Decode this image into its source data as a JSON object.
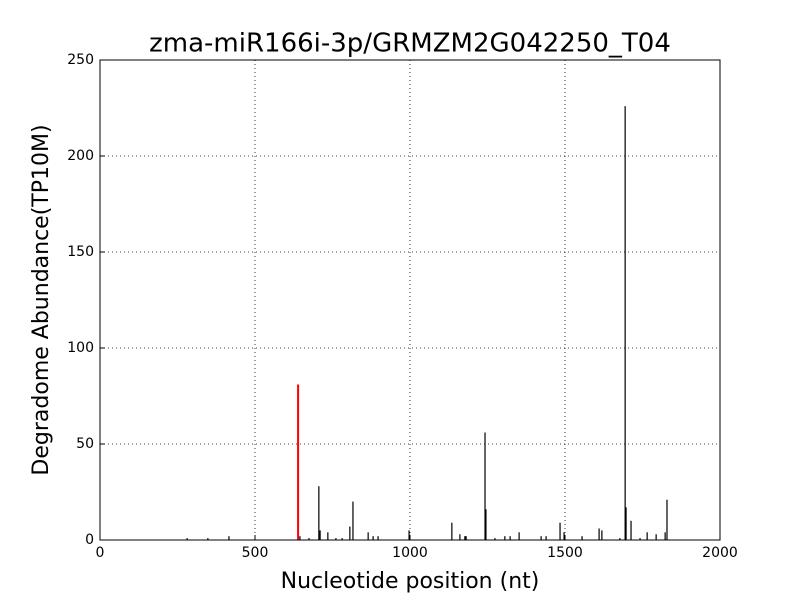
{
  "chart_data": {
    "type": "stem",
    "title": "zma-miR166i-3p/GRMZM2G042250_T04",
    "x_label": "Nucleotide position (nt)",
    "y_label": "Degradome Abundance(TP10M)",
    "xlim": [
      0,
      2000
    ],
    "xticks": [
      0,
      500,
      1000,
      1500,
      2000
    ],
    "ylim": [
      0,
      250
    ],
    "yticks": [
      0,
      50,
      100,
      150,
      200,
      250
    ],
    "grid": true,
    "series": [
      {
        "color": "#000000",
        "x": [
          281,
          348,
          416,
          645,
          674,
          706,
          710,
          735,
          761,
          781,
          806,
          816,
          865,
          881,
          897,
          997,
          1135,
          1161,
          1177,
          1181,
          1242,
          1245,
          1274,
          1306,
          1323,
          1352,
          1423,
          1439,
          1484,
          1497,
          1555,
          1610,
          1619,
          1677,
          1694,
          1697,
          1713,
          1742,
          1765,
          1794,
          1823,
          1829
        ],
        "values": [
          1,
          1,
          2,
          2,
          1,
          28,
          5,
          4,
          1,
          1,
          7,
          20,
          4,
          2,
          2,
          5,
          9,
          3,
          2,
          2,
          56,
          16,
          1,
          2,
          2,
          4,
          2,
          2,
          9,
          4,
          2,
          6,
          5,
          1,
          226,
          17,
          10,
          1,
          4,
          3,
          4,
          21
        ]
      },
      {
        "color": "#ff0000",
        "x": [
          639
        ],
        "values": [
          81
        ]
      }
    ]
  }
}
